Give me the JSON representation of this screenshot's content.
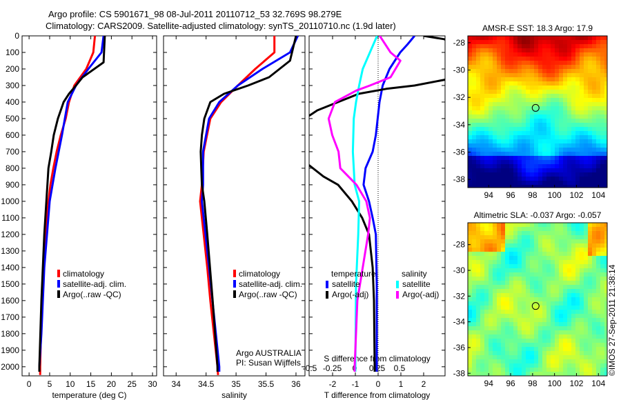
{
  "title_line1": "Argo profile: CS 5901671_98 08-Jul-2011 20110712_53 32.769S 98.279E",
  "title_line2": "Climatology: CARS2009. Satellite-adjusted climatology: synTS_20110710.nc (1.9d later)",
  "credit": "©IMOS 27-Sep-2011 21:38:14",
  "chart_data": [
    {
      "type": "line",
      "id": "temperature",
      "xlabel": "temperature (deg C)",
      "ylabel": "",
      "xlim": [
        -1.7,
        31
      ],
      "ylim": [
        2055,
        0
      ],
      "xticks": [
        "0",
        "5",
        "10",
        "15",
        "20",
        "25",
        "30"
      ],
      "xtick_values": [
        0,
        5,
        10,
        15,
        20,
        25,
        30
      ],
      "yticks": [
        0,
        100,
        200,
        300,
        400,
        500,
        600,
        700,
        800,
        900,
        1000,
        1100,
        1200,
        1300,
        1400,
        1500,
        1600,
        1700,
        1800,
        1900,
        2000
      ],
      "legend": {
        "placement": "lower-middle",
        "entries": [
          "climatology",
          "satellite-adj. clim.",
          "Argo(..raw -QC)"
        ]
      },
      "series": [
        {
          "name": "climatology",
          "color": "#ff0000",
          "depth": [
            0,
            100,
            200,
            300,
            400,
            500,
            600,
            700,
            800,
            900,
            1000,
            1200,
            1400,
            1600,
            1800,
            2000,
            2050
          ],
          "values": [
            16.0,
            15.6,
            13.9,
            11.0,
            9.7,
            8.9,
            7.7,
            6.7,
            5.9,
            5.2,
            4.7,
            4.0,
            3.5,
            3.2,
            2.9,
            2.7,
            2.7
          ]
        },
        {
          "name": "satellite-adj. clim.",
          "color": "#0000ff",
          "depth": [
            0,
            100,
            200,
            300,
            400,
            600,
            800,
            1000,
            1400,
            1800,
            2000,
            2030
          ],
          "values": [
            18.1,
            17.6,
            14.4,
            11.4,
            9.4,
            8.0,
            6.4,
            5.0,
            3.7,
            3.0,
            2.5,
            2.5
          ]
        },
        {
          "name": "Argo(..raw -QC)",
          "color": "#000000",
          "depth": [
            0,
            160,
            250,
            300,
            350,
            400,
            500,
            600,
            700,
            800,
            1000,
            1200,
            1600,
            2000,
            2030
          ],
          "values": [
            18.4,
            18.1,
            13.0,
            11.4,
            9.7,
            8.4,
            7.0,
            6.0,
            5.4,
            4.7,
            4.2,
            3.7,
            3.0,
            2.5,
            2.5
          ]
        }
      ]
    },
    {
      "type": "line",
      "id": "salinity",
      "xlabel": "salinity",
      "xlim": [
        33.79,
        36.15
      ],
      "ylim": [
        2055,
        0
      ],
      "xticks": [
        "34",
        "34.5",
        "35",
        "35.5",
        "36"
      ],
      "xtick_values": [
        34,
        34.5,
        35,
        35.5,
        36
      ],
      "legend": {
        "placement": "lower-middle",
        "entries": [
          "climatology",
          "satellite-adj. clim.",
          "Argo(..raw -QC)"
        ]
      },
      "annotation": [
        "Argo AUSTRALIA",
        "PI: Susan Wijffels"
      ],
      "series": [
        {
          "name": "climatology",
          "color": "#ff0000",
          "depth": [
            0,
            100,
            200,
            300,
            400,
            500,
            700,
            900,
            1000,
            1200,
            1400,
            1600,
            1800,
            2000,
            2050
          ],
          "values": [
            35.64,
            35.64,
            35.32,
            35.03,
            34.75,
            34.57,
            34.46,
            34.43,
            34.4,
            34.46,
            34.52,
            34.57,
            34.63,
            34.69,
            34.7
          ]
        },
        {
          "name": "satellite-adj. clim.",
          "color": "#0000ff",
          "depth": [
            0,
            100,
            200,
            300,
            400,
            500,
            700,
            900,
            1000,
            1400,
            2000,
            2030
          ],
          "values": [
            36.03,
            35.9,
            35.44,
            35.03,
            34.72,
            34.55,
            34.45,
            34.45,
            34.43,
            34.55,
            34.72,
            34.72
          ]
        },
        {
          "name": "Argo(..raw -QC)",
          "color": "#000000",
          "depth": [
            0,
            150,
            250,
            300,
            350,
            400,
            500,
            600,
            700,
            800,
            900,
            1000,
            1200,
            1600,
            2000,
            2030
          ],
          "values": [
            36.0,
            35.9,
            35.55,
            35.2,
            34.8,
            34.57,
            34.47,
            34.43,
            34.41,
            34.42,
            34.43,
            34.47,
            34.52,
            34.61,
            34.69,
            34.69
          ]
        }
      ]
    },
    {
      "type": "line",
      "id": "difference",
      "xlabel": "T difference from climatology",
      "x2label": "S difference from climatology",
      "xlim": [
        -3.03,
        2.94
      ],
      "x2lim": [
        -0.5077,
        1.0077
      ],
      "ylim": [
        2055,
        0
      ],
      "xticks": [
        "-2",
        "-1",
        "0",
        "1",
        "2"
      ],
      "xtick_values": [
        -2,
        -1,
        0,
        1,
        2
      ],
      "x2ticks": [
        "-0.5",
        "-0.25",
        "0",
        "0.25",
        "0.5"
      ],
      "x2tick_values": [
        -0.5,
        -0.25,
        0,
        0.25,
        0.5
      ],
      "legend": {
        "placement": "lower-middle",
        "groups": [
          {
            "title": "temperature",
            "entries": [
              "satellite",
              "Argo(-adj)"
            ]
          },
          {
            "title": "salinity",
            "entries": [
              "satellite",
              "Argo(-adj)"
            ]
          }
        ]
      },
      "series": [
        {
          "name": "temperature satellite",
          "axis": "T",
          "color": "#0000ff",
          "depth": [
            0,
            50,
            100,
            200,
            300,
            400,
            600,
            700,
            800,
            900,
            1000,
            1100,
            1200,
            1500,
            2000,
            2030
          ],
          "values": [
            1.6,
            1.3,
            0.97,
            0.5,
            0.2,
            0.06,
            -0.1,
            -0.24,
            -0.55,
            -0.64,
            -0.4,
            -0.24,
            -0.1,
            -0.06,
            -0.06,
            -0.06
          ]
        },
        {
          "name": "temperature Argo(-adj)",
          "axis": "T",
          "color": "#000000",
          "depth": [
            0,
            20,
            60,
            150,
            250,
            300,
            320,
            350,
            400,
            450,
            480,
            540,
            600,
            700,
            780,
            850,
            900,
            1000,
            1100,
            1200,
            1400,
            1600,
            2000,
            2030
          ],
          "values": [
            2.0,
            2.9,
            3.5,
            3.8,
            3.5,
            1.6,
            0.36,
            -0.85,
            -1.76,
            -2.67,
            -3.0,
            -3.8,
            -4.2,
            -4.0,
            -3.05,
            -2.4,
            -1.76,
            -1.15,
            -0.7,
            -0.4,
            -0.24,
            -0.18,
            -0.15,
            -0.15
          ]
        },
        {
          "name": "salinity satellite",
          "axis": "S",
          "color": "#00ffff",
          "depth": [
            0,
            50,
            100,
            200,
            300,
            400,
            500,
            700,
            900,
            1000,
            1200,
            1500,
            2000,
            2030
          ],
          "values": [
            0.25,
            0.21,
            0.17,
            0.09,
            0.05,
            0.015,
            -0.01,
            -0.02,
            0.0,
            0.05,
            0.04,
            0.015,
            0.008,
            0.008
          ]
        },
        {
          "name": "salinity Argo(-adj)",
          "axis": "S",
          "color": "#ff00ff",
          "depth": [
            0,
            100,
            150,
            250,
            300,
            330,
            400,
            500,
            600,
            700,
            800,
            900,
            1000,
            1100,
            1200,
            1400,
            1600,
            2000,
            2030
          ],
          "values": [
            0.28,
            0.4,
            0.51,
            0.4,
            0.17,
            0.02,
            -0.22,
            -0.29,
            -0.25,
            -0.18,
            -0.16,
            0.02,
            0.13,
            0.17,
            0.15,
            0.09,
            0.03,
            0.0,
            0.0
          ]
        }
      ]
    },
    {
      "type": "heatmap",
      "id": "sst-map",
      "title": "AMSR-E SST: 18.3 Argo: 17.9",
      "xlim": [
        92.1,
        104.8
      ],
      "ylim": [
        -38.6,
        -27.5
      ],
      "xticks": [
        "94",
        "96",
        "98",
        "100",
        "102",
        "104"
      ],
      "xtick_values": [
        94,
        96,
        98,
        100,
        102,
        104
      ],
      "yticks": [
        "-28",
        "-30",
        "-32",
        "-34",
        "-36",
        "-38"
      ],
      "ytick_values": [
        -28,
        -30,
        -32,
        -34,
        -36,
        -38
      ],
      "marker": {
        "lon": 98.279,
        "lat": -32.769
      }
    },
    {
      "type": "heatmap",
      "id": "sla-map",
      "title": "Altimetric SLA: -0.037 Argo: -0.057",
      "xlim": [
        92.1,
        104.8
      ],
      "ylim": [
        -38.2,
        -26.3
      ],
      "xticks": [
        "94",
        "96",
        "98",
        "100",
        "102",
        "104"
      ],
      "xtick_values": [
        94,
        96,
        98,
        100,
        102,
        104
      ],
      "yticks": [
        "-28",
        "-30",
        "-32",
        "-34",
        "-36",
        "-38"
      ],
      "ytick_values": [
        -28,
        -30,
        -32,
        -34,
        -36,
        -38
      ],
      "marker": {
        "lon": 98.279,
        "lat": -32.769
      }
    }
  ]
}
